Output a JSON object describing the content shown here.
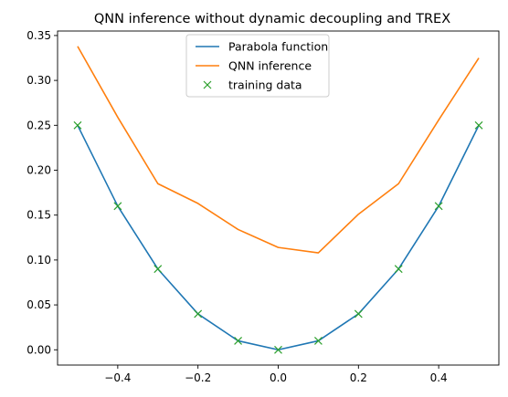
{
  "chart_data": {
    "type": "line",
    "title": "QNN inference without dynamic decoupling and TREX",
    "xlabel": "",
    "ylabel": "",
    "xlim": [
      -0.55,
      0.55
    ],
    "ylim": [
      -0.017,
      0.355
    ],
    "grid": false,
    "legend_position": "top-center",
    "x_ticks": [
      -0.4,
      -0.2,
      0.0,
      0.2,
      0.4
    ],
    "x_tick_labels": [
      "−0.4",
      "−0.2",
      "0.0",
      "0.2",
      "0.4"
    ],
    "y_ticks": [
      0.0,
      0.05,
      0.1,
      0.15,
      0.2,
      0.25,
      0.3,
      0.35
    ],
    "y_tick_labels": [
      "0.00",
      "0.05",
      "0.10",
      "0.15",
      "0.20",
      "0.25",
      "0.30",
      "0.35"
    ],
    "x": [
      -0.5,
      -0.4,
      -0.3,
      -0.2,
      -0.1,
      0.0,
      0.1,
      0.2,
      0.3,
      0.4,
      0.5
    ],
    "series": [
      {
        "name": "Parabola function",
        "style": "line",
        "color": "#1f77b4",
        "values": [
          0.25,
          0.16,
          0.09,
          0.04,
          0.01,
          0.0,
          0.01,
          0.04,
          0.09,
          0.16,
          0.25
        ]
      },
      {
        "name": "QNN inference",
        "style": "line",
        "color": "#ff7f0e",
        "values": [
          0.338,
          0.259,
          0.185,
          0.163,
          0.134,
          0.114,
          0.108,
          0.151,
          0.185,
          0.256,
          0.325
        ]
      },
      {
        "name": "training data",
        "style": "marker-x",
        "color": "#2ca02c",
        "values": [
          0.25,
          0.16,
          0.09,
          0.04,
          0.01,
          0.0,
          0.01,
          0.04,
          0.09,
          0.16,
          0.25
        ]
      }
    ]
  }
}
